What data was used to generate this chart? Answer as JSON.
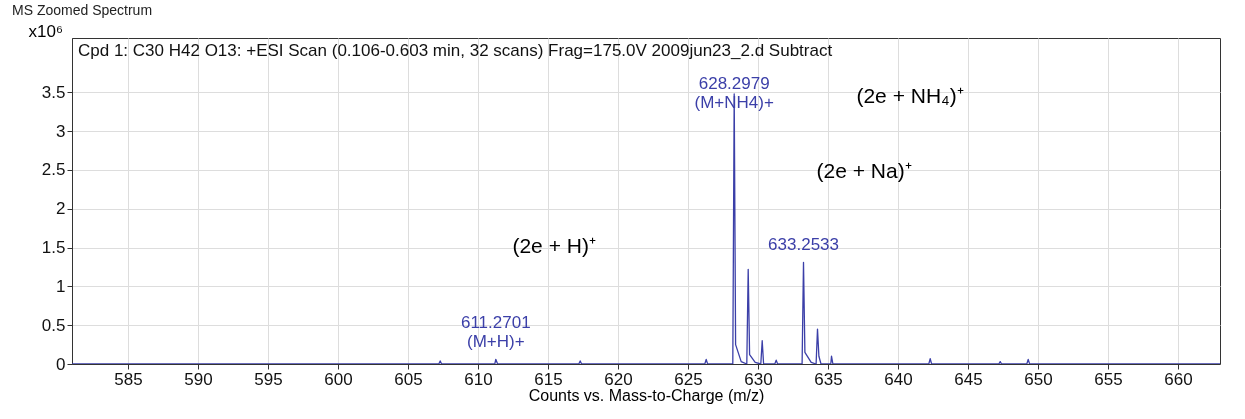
{
  "chart_data": {
    "type": "line",
    "title": "MS Zoomed Spectrum",
    "subtitle": "Cpd 1: C30 H42 O13: +ESI Scan (0.106-0.603 min, 32 scans) Frag=175.0V 2009jun23_2.d  Subtract",
    "xlabel": "Counts vs. Mass-to-Charge (m/z)",
    "ylabel": "x10⁶",
    "x": [
      581,
      607.2,
      607.3,
      607.4,
      611.2,
      611.27,
      611.4,
      617.2,
      617.3,
      617.4,
      626.2,
      626.3,
      626.4,
      628.2,
      628.3,
      628.4,
      628.8,
      629.2,
      629.3,
      629.4,
      629.8,
      630.2,
      630.3,
      630.4,
      631.2,
      631.3,
      631.4,
      633.15,
      633.25,
      633.35,
      633.8,
      634.15,
      634.25,
      634.35,
      634.5,
      635.2,
      635.25,
      635.35,
      642.2,
      642.3,
      642.4,
      647.2,
      647.3,
      647.4,
      649.2,
      649.3,
      649.4,
      663
    ],
    "series": [
      {
        "color": "#3b3fa8",
        "values": [
          0,
          0,
          0.04,
          0,
          0,
          0.06,
          0,
          0,
          0.04,
          0,
          0,
          0.06,
          0,
          0,
          3.48,
          0.25,
          0.03,
          0,
          1.22,
          0.12,
          0.02,
          0,
          0.3,
          0,
          0,
          0.05,
          0,
          0,
          1.31,
          0.15,
          0.02,
          0,
          0.45,
          0.1,
          0,
          0,
          0.1,
          0,
          0,
          0.07,
          0,
          0,
          0.03,
          0,
          0,
          0.06,
          0,
          0
        ]
      }
    ],
    "xlim": [
      581,
      663
    ],
    "ylim": [
      0,
      4.2
    ],
    "xticks": [
      585,
      590,
      595,
      600,
      605,
      610,
      615,
      620,
      625,
      630,
      635,
      640,
      645,
      650,
      655,
      660
    ],
    "yticks": [
      0,
      0.5,
      1,
      1.5,
      2,
      2.5,
      3,
      3.5
    ],
    "grid": true,
    "marker": "none",
    "annotations": [
      {
        "text": "628.2979\n(M+NH4)+",
        "x": 628.2979,
        "y": 3.48
      },
      {
        "text": "633.2533",
        "x": 633.2533,
        "y": 1.31
      },
      {
        "text": "611.2701\n(M+H)+",
        "x": 611.2701,
        "y": 0.06
      },
      "(2e + NH₄)⁺",
      "(2e + Na)⁺",
      "(2e + H)⁺"
    ]
  }
}
